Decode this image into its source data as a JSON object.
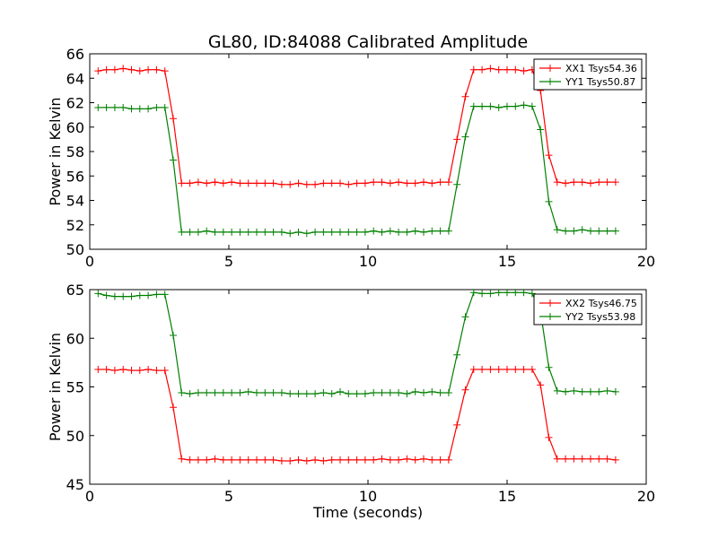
{
  "title": "GL80, ID:84088 Calibrated Amplitude",
  "chart_data": [
    {
      "type": "line",
      "title": "GL80, ID:84088 Calibrated Amplitude",
      "xlabel": "",
      "ylabel": "Power in Kelvin",
      "xlim": [
        0,
        20
      ],
      "ylim": [
        50,
        66
      ],
      "xticks": [
        "0",
        "5",
        "10",
        "15",
        "20"
      ],
      "yticks": [
        "50",
        "52",
        "54",
        "56",
        "58",
        "60",
        "62",
        "64",
        "66"
      ],
      "legend_position": "top-right",
      "x": [
        0.3,
        0.6,
        0.9,
        1.2,
        1.5,
        1.8,
        2.1,
        2.4,
        2.7,
        3.0,
        3.3,
        3.6,
        3.9,
        4.2,
        4.5,
        4.8,
        5.1,
        5.4,
        5.7,
        6.0,
        6.3,
        6.6,
        6.9,
        7.2,
        7.5,
        7.8,
        8.1,
        8.4,
        8.7,
        9.0,
        9.3,
        9.6,
        9.9,
        10.2,
        10.5,
        10.8,
        11.1,
        11.4,
        11.7,
        12.0,
        12.3,
        12.6,
        12.9,
        13.2,
        13.5,
        13.8,
        14.1,
        14.4,
        14.7,
        15.0,
        15.3,
        15.6,
        15.9,
        16.2,
        16.5,
        16.8,
        17.1,
        17.4,
        17.7,
        18.0,
        18.3,
        18.6,
        18.9
      ],
      "series": [
        {
          "name": "XX1 Tsys54.36",
          "color": "#ff0000",
          "values": [
            64.6,
            64.7,
            64.7,
            64.8,
            64.7,
            64.6,
            64.7,
            64.7,
            64.6,
            60.7,
            55.4,
            55.4,
            55.5,
            55.4,
            55.5,
            55.4,
            55.5,
            55.4,
            55.4,
            55.4,
            55.4,
            55.4,
            55.3,
            55.3,
            55.4,
            55.3,
            55.3,
            55.4,
            55.4,
            55.4,
            55.3,
            55.4,
            55.4,
            55.5,
            55.5,
            55.4,
            55.5,
            55.4,
            55.4,
            55.5,
            55.4,
            55.5,
            55.5,
            59.0,
            62.5,
            64.7,
            64.7,
            64.8,
            64.7,
            64.7,
            64.7,
            64.6,
            64.7,
            63.0,
            57.7,
            55.5,
            55.4,
            55.5,
            55.5,
            55.4,
            55.5,
            55.5,
            55.5
          ]
        },
        {
          "name": "YY1 Tsys50.87",
          "color": "#008000",
          "values": [
            61.6,
            61.6,
            61.6,
            61.6,
            61.5,
            61.5,
            61.5,
            61.6,
            61.6,
            57.3,
            51.4,
            51.4,
            51.4,
            51.5,
            51.4,
            51.4,
            51.4,
            51.4,
            51.4,
            51.4,
            51.4,
            51.4,
            51.4,
            51.3,
            51.4,
            51.3,
            51.4,
            51.4,
            51.4,
            51.4,
            51.4,
            51.4,
            51.4,
            51.5,
            51.4,
            51.5,
            51.4,
            51.4,
            51.5,
            51.4,
            51.5,
            51.5,
            51.5,
            55.3,
            59.2,
            61.7,
            61.7,
            61.7,
            61.6,
            61.7,
            61.7,
            61.8,
            61.7,
            59.8,
            53.9,
            51.6,
            51.5,
            51.5,
            51.6,
            51.5,
            51.5,
            51.5,
            51.5
          ]
        }
      ]
    },
    {
      "type": "line",
      "title": "",
      "xlabel": "Time (seconds)",
      "ylabel": "Power in Kelvin",
      "xlim": [
        0,
        20
      ],
      "ylim": [
        45,
        65
      ],
      "xticks": [
        "0",
        "5",
        "10",
        "15",
        "20"
      ],
      "yticks": [
        "45",
        "50",
        "55",
        "60",
        "65"
      ],
      "legend_position": "top-right",
      "x": [
        0.3,
        0.6,
        0.9,
        1.2,
        1.5,
        1.8,
        2.1,
        2.4,
        2.7,
        3.0,
        3.3,
        3.6,
        3.9,
        4.2,
        4.5,
        4.8,
        5.1,
        5.4,
        5.7,
        6.0,
        6.3,
        6.6,
        6.9,
        7.2,
        7.5,
        7.8,
        8.1,
        8.4,
        8.7,
        9.0,
        9.3,
        9.6,
        9.9,
        10.2,
        10.5,
        10.8,
        11.1,
        11.4,
        11.7,
        12.0,
        12.3,
        12.6,
        12.9,
        13.2,
        13.5,
        13.8,
        14.1,
        14.4,
        14.7,
        15.0,
        15.3,
        15.6,
        15.9,
        16.2,
        16.5,
        16.8,
        17.1,
        17.4,
        17.7,
        18.0,
        18.3,
        18.6,
        18.9
      ],
      "series": [
        {
          "name": "XX2 Tsys46.75",
          "color": "#ff0000",
          "values": [
            56.8,
            56.8,
            56.7,
            56.8,
            56.7,
            56.7,
            56.8,
            56.7,
            56.7,
            52.9,
            47.6,
            47.5,
            47.5,
            47.5,
            47.6,
            47.5,
            47.5,
            47.5,
            47.5,
            47.5,
            47.5,
            47.5,
            47.4,
            47.4,
            47.5,
            47.4,
            47.5,
            47.4,
            47.5,
            47.5,
            47.5,
            47.5,
            47.5,
            47.5,
            47.6,
            47.5,
            47.5,
            47.6,
            47.5,
            47.6,
            47.5,
            47.5,
            47.5,
            51.1,
            54.7,
            56.8,
            56.8,
            56.8,
            56.8,
            56.8,
            56.8,
            56.8,
            56.8,
            55.2,
            49.8,
            47.6,
            47.6,
            47.6,
            47.6,
            47.6,
            47.6,
            47.6,
            47.5
          ]
        },
        {
          "name": "YY2 Tsys53.98",
          "color": "#008000",
          "values": [
            64.6,
            64.4,
            64.3,
            64.3,
            64.3,
            64.4,
            64.4,
            64.5,
            64.5,
            60.3,
            54.4,
            54.3,
            54.4,
            54.4,
            54.4,
            54.4,
            54.4,
            54.4,
            54.5,
            54.4,
            54.4,
            54.4,
            54.4,
            54.3,
            54.3,
            54.3,
            54.3,
            54.4,
            54.3,
            54.5,
            54.3,
            54.3,
            54.3,
            54.4,
            54.4,
            54.4,
            54.4,
            54.3,
            54.5,
            54.4,
            54.5,
            54.4,
            54.4,
            58.3,
            62.2,
            64.7,
            64.6,
            64.6,
            64.7,
            64.7,
            64.7,
            64.7,
            64.6,
            62.8,
            57.0,
            54.6,
            54.5,
            54.6,
            54.5,
            54.5,
            54.5,
            54.6,
            54.5
          ]
        }
      ]
    }
  ]
}
